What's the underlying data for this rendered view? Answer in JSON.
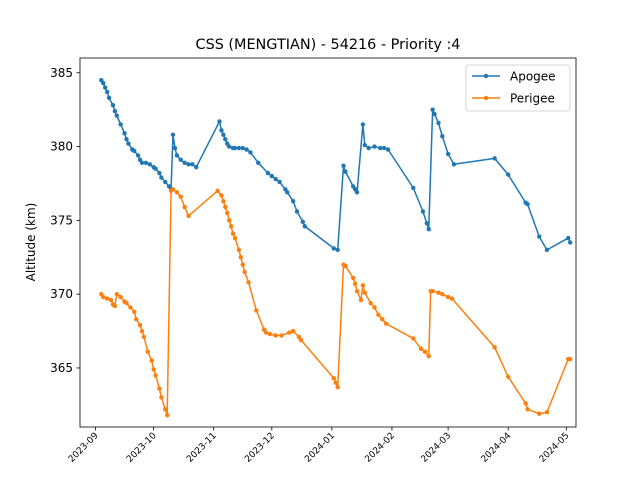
{
  "chart_data": {
    "type": "line",
    "title": "CSS (MENGTIAN) - 54216 - Priority :4",
    "xlabel": "",
    "ylabel": "Altitude (km)",
    "xlim": [
      "2023-08-24",
      "2024-05-06"
    ],
    "ylim": [
      361.0,
      386.0
    ],
    "grid": false,
    "legend_position": "upper-right",
    "x_ticks": [
      "2023-09-01",
      "2023-10-01",
      "2023-11-01",
      "2023-12-01",
      "2024-01-01",
      "2024-02-01",
      "2024-03-01",
      "2024-04-01",
      "2024-05-01"
    ],
    "x_tick_labels": [
      "2023-09",
      "2023-10",
      "2023-11",
      "2023-12",
      "2024-01",
      "2024-02",
      "2024-03",
      "2024-04",
      "2024-05"
    ],
    "y_ticks": [
      365,
      370,
      375,
      380,
      385
    ],
    "y_tick_labels": [
      "365",
      "370",
      "375",
      "380",
      "385"
    ],
    "series": [
      {
        "name": "Apogee",
        "color": "#1f77b4",
        "points": [
          [
            "2023-09-04",
            384.5
          ],
          [
            "2023-09-05",
            384.3
          ],
          [
            "2023-09-06",
            384.0
          ],
          [
            "2023-09-07",
            383.7
          ],
          [
            "2023-09-08",
            383.3
          ],
          [
            "2023-09-10",
            382.8
          ],
          [
            "2023-09-11",
            382.4
          ],
          [
            "2023-09-12",
            382.1
          ],
          [
            "2023-09-14",
            381.5
          ],
          [
            "2023-09-16",
            380.9
          ],
          [
            "2023-09-17",
            380.5
          ],
          [
            "2023-09-18",
            380.2
          ],
          [
            "2023-09-20",
            379.8
          ],
          [
            "2023-09-21",
            379.7
          ],
          [
            "2023-09-23",
            379.4
          ],
          [
            "2023-09-24",
            379.1
          ],
          [
            "2023-09-25",
            378.9
          ],
          [
            "2023-09-27",
            378.9
          ],
          [
            "2023-09-29",
            378.8
          ],
          [
            "2023-10-01",
            378.6
          ],
          [
            "2023-10-02",
            378.5
          ],
          [
            "2023-10-04",
            378.2
          ],
          [
            "2023-10-05",
            377.9
          ],
          [
            "2023-10-07",
            377.6
          ],
          [
            "2023-10-09",
            377.3
          ],
          [
            "2023-10-10",
            377.1
          ],
          [
            "2023-10-11",
            380.8
          ],
          [
            "2023-10-12",
            379.9
          ],
          [
            "2023-10-13",
            379.4
          ],
          [
            "2023-10-15",
            379.1
          ],
          [
            "2023-10-17",
            378.9
          ],
          [
            "2023-10-19",
            378.8
          ],
          [
            "2023-10-21",
            378.8
          ],
          [
            "2023-10-23",
            378.6
          ],
          [
            "2023-11-04",
            381.7
          ],
          [
            "2023-11-05",
            381.1
          ],
          [
            "2023-11-06",
            380.8
          ],
          [
            "2023-11-07",
            380.5
          ],
          [
            "2023-11-08",
            380.2
          ],
          [
            "2023-11-09",
            380.0
          ],
          [
            "2023-11-11",
            379.9
          ],
          [
            "2023-11-12",
            379.9
          ],
          [
            "2023-11-14",
            379.9
          ],
          [
            "2023-11-16",
            379.9
          ],
          [
            "2023-11-18",
            379.8
          ],
          [
            "2023-11-20",
            379.6
          ],
          [
            "2023-11-24",
            378.9
          ],
          [
            "2023-11-29",
            378.2
          ],
          [
            "2023-12-01",
            378.0
          ],
          [
            "2023-12-03",
            377.8
          ],
          [
            "2023-12-05",
            377.6
          ],
          [
            "2023-12-08",
            377.1
          ],
          [
            "2023-12-09",
            376.9
          ],
          [
            "2023-12-12",
            376.3
          ],
          [
            "2023-12-14",
            375.6
          ],
          [
            "2023-12-17",
            374.9
          ],
          [
            "2023-12-18",
            374.6
          ],
          [
            "2024-01-02",
            373.1
          ],
          [
            "2024-01-04",
            373.0
          ],
          [
            "2024-01-07",
            378.7
          ],
          [
            "2024-01-08",
            378.3
          ],
          [
            "2024-01-12",
            377.3
          ],
          [
            "2024-01-13",
            377.1
          ],
          [
            "2024-01-14",
            376.9
          ],
          [
            "2024-01-17",
            381.5
          ],
          [
            "2024-01-18",
            380.1
          ],
          [
            "2024-01-20",
            379.9
          ],
          [
            "2024-01-23",
            380.0
          ],
          [
            "2024-01-26",
            379.9
          ],
          [
            "2024-01-28",
            379.9
          ],
          [
            "2024-01-30",
            379.8
          ],
          [
            "2024-02-12",
            377.2
          ],
          [
            "2024-02-17",
            375.6
          ],
          [
            "2024-02-19",
            374.8
          ],
          [
            "2024-02-20",
            374.4
          ],
          [
            "2024-02-22",
            382.5
          ],
          [
            "2024-02-23",
            382.2
          ],
          [
            "2024-02-25",
            381.6
          ],
          [
            "2024-02-27",
            380.7
          ],
          [
            "2024-03-01",
            379.5
          ],
          [
            "2024-03-04",
            378.8
          ],
          [
            "2024-03-25",
            379.2
          ],
          [
            "2024-04-01",
            378.1
          ],
          [
            "2024-04-10",
            376.2
          ],
          [
            "2024-04-11",
            376.1
          ],
          [
            "2024-04-17",
            373.9
          ],
          [
            "2024-04-21",
            373.0
          ],
          [
            "2024-05-02",
            373.8
          ],
          [
            "2024-05-03",
            373.5
          ]
        ]
      },
      {
        "name": "Perigee",
        "color": "#ff7f0e",
        "points": [
          [
            "2023-09-04",
            370.0
          ],
          [
            "2023-09-05",
            369.8
          ],
          [
            "2023-09-07",
            369.7
          ],
          [
            "2023-09-09",
            369.6
          ],
          [
            "2023-09-10",
            369.3
          ],
          [
            "2023-09-11",
            369.2
          ],
          [
            "2023-09-12",
            370.0
          ],
          [
            "2023-09-14",
            369.8
          ],
          [
            "2023-09-16",
            369.5
          ],
          [
            "2023-09-17",
            369.4
          ],
          [
            "2023-09-19",
            369.1
          ],
          [
            "2023-09-21",
            368.8
          ],
          [
            "2023-09-22",
            368.3
          ],
          [
            "2023-09-24",
            367.9
          ],
          [
            "2023-09-25",
            367.5
          ],
          [
            "2023-09-26",
            367.1
          ],
          [
            "2023-09-28",
            366.1
          ],
          [
            "2023-09-30",
            365.5
          ],
          [
            "2023-10-01",
            364.9
          ],
          [
            "2023-10-02",
            364.5
          ],
          [
            "2023-10-04",
            363.6
          ],
          [
            "2023-10-05",
            363.0
          ],
          [
            "2023-10-07",
            362.2
          ],
          [
            "2023-10-08",
            361.8
          ],
          [
            "2023-10-10",
            377.0
          ],
          [
            "2023-10-11",
            377.1
          ],
          [
            "2023-10-13",
            376.9
          ],
          [
            "2023-10-15",
            376.6
          ],
          [
            "2023-10-17",
            375.9
          ],
          [
            "2023-10-19",
            375.3
          ],
          [
            "2023-11-03",
            377.0
          ],
          [
            "2023-11-05",
            376.7
          ],
          [
            "2023-11-06",
            376.3
          ],
          [
            "2023-11-07",
            375.9
          ],
          [
            "2023-11-08",
            375.5
          ],
          [
            "2023-11-09",
            375.0
          ],
          [
            "2023-11-10",
            374.6
          ],
          [
            "2023-11-11",
            374.1
          ],
          [
            "2023-11-12",
            373.8
          ],
          [
            "2023-11-14",
            373.0
          ],
          [
            "2023-11-15",
            372.5
          ],
          [
            "2023-11-16",
            372.0
          ],
          [
            "2023-11-17",
            371.5
          ],
          [
            "2023-11-19",
            370.8
          ],
          [
            "2023-11-23",
            368.9
          ],
          [
            "2023-11-27",
            367.6
          ],
          [
            "2023-11-28",
            367.4
          ],
          [
            "2023-11-30",
            367.3
          ],
          [
            "2023-12-03",
            367.2
          ],
          [
            "2023-12-06",
            367.2
          ],
          [
            "2023-12-10",
            367.4
          ],
          [
            "2023-12-12",
            367.5
          ],
          [
            "2023-12-15",
            367.1
          ],
          [
            "2023-12-16",
            366.9
          ],
          [
            "2024-01-02",
            364.3
          ],
          [
            "2024-01-03",
            364.0
          ],
          [
            "2024-01-04",
            363.7
          ],
          [
            "2024-01-07",
            372.0
          ],
          [
            "2024-01-08",
            371.9
          ],
          [
            "2024-01-12",
            371.1
          ],
          [
            "2024-01-13",
            370.7
          ],
          [
            "2024-01-14",
            370.2
          ],
          [
            "2024-01-16",
            369.6
          ],
          [
            "2024-01-17",
            370.6
          ],
          [
            "2024-01-18",
            370.1
          ],
          [
            "2024-01-21",
            369.4
          ],
          [
            "2024-01-23",
            369.1
          ],
          [
            "2024-01-25",
            368.6
          ],
          [
            "2024-01-27",
            368.3
          ],
          [
            "2024-01-29",
            368.0
          ],
          [
            "2024-02-12",
            367.0
          ],
          [
            "2024-02-16",
            366.3
          ],
          [
            "2024-02-18",
            366.1
          ],
          [
            "2024-02-20",
            365.8
          ],
          [
            "2024-02-21",
            370.2
          ],
          [
            "2024-02-22",
            370.2
          ],
          [
            "2024-02-25",
            370.1
          ],
          [
            "2024-02-27",
            370.0
          ],
          [
            "2024-03-01",
            369.8
          ],
          [
            "2024-03-03",
            369.7
          ],
          [
            "2024-03-25",
            366.4
          ],
          [
            "2024-04-01",
            364.4
          ],
          [
            "2024-04-10",
            362.6
          ],
          [
            "2024-04-11",
            362.2
          ],
          [
            "2024-04-17",
            361.9
          ],
          [
            "2024-04-21",
            362.0
          ],
          [
            "2024-05-02",
            365.6
          ],
          [
            "2024-05-03",
            365.6
          ]
        ]
      }
    ]
  }
}
